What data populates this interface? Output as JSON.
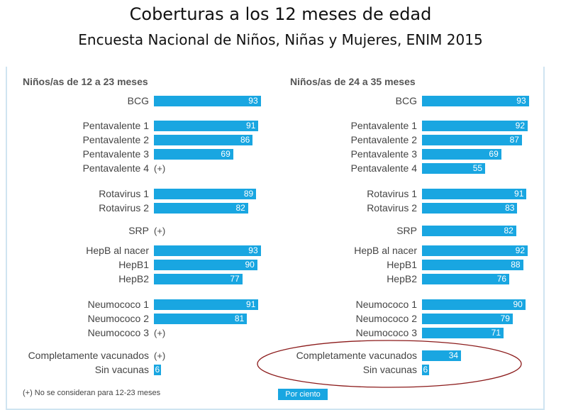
{
  "title": "Coberturas  a los 12 meses de edad",
  "subtitle": "Encuesta Nacional de Niños, Niñas y Mujeres, ENIM 2015",
  "note": "(+) No se consideran para 12-23 meses",
  "legend": "Por ciento",
  "plus_marker": "(+)",
  "colors": {
    "bar": "#19a6e1",
    "ellipse": "#8b1a1a"
  },
  "chart_data": [
    {
      "type": "bar",
      "orientation": "horizontal",
      "title": "Niños/as de 12 a 23 meses",
      "unit": "Por ciento",
      "xlim": [
        0,
        100
      ],
      "categories": [
        "BCG",
        "Pentavalente 1",
        "Pentavalente 2",
        "Pentavalente 3",
        "Pentavalente 4",
        "Rotavirus 1",
        "Rotavirus 2",
        "SRP",
        "HepB al nacer",
        "HepB1",
        "HepB2",
        "Neumococo 1",
        "Neumococo 2",
        "Neumococo 3",
        "Completamente vacunados",
        "Sin vacunas"
      ],
      "values": [
        93,
        91,
        86,
        69,
        null,
        89,
        82,
        null,
        93,
        90,
        77,
        91,
        81,
        null,
        null,
        6
      ]
    },
    {
      "type": "bar",
      "orientation": "horizontal",
      "title": "Niños/as de 24 a 35 meses",
      "unit": "Por ciento",
      "xlim": [
        0,
        100
      ],
      "categories": [
        "BCG",
        "Pentavalente 1",
        "Pentavalente 2",
        "Pentavalente 3",
        "Pentavalente 4",
        "Rotavirus 1",
        "Rotavirus 2",
        "SRP",
        "HepB al nacer",
        "HepB1",
        "HepB2",
        "Neumococo 1",
        "Neumococo 2",
        "Neumococo 3",
        "Completamente vacunados",
        "Sin vacunas"
      ],
      "values": [
        93,
        92,
        87,
        69,
        55,
        91,
        83,
        82,
        92,
        88,
        76,
        90,
        79,
        71,
        34,
        6
      ],
      "annotation": "highlighted ellipse around Completamente vacunados and Sin vacunas"
    }
  ]
}
